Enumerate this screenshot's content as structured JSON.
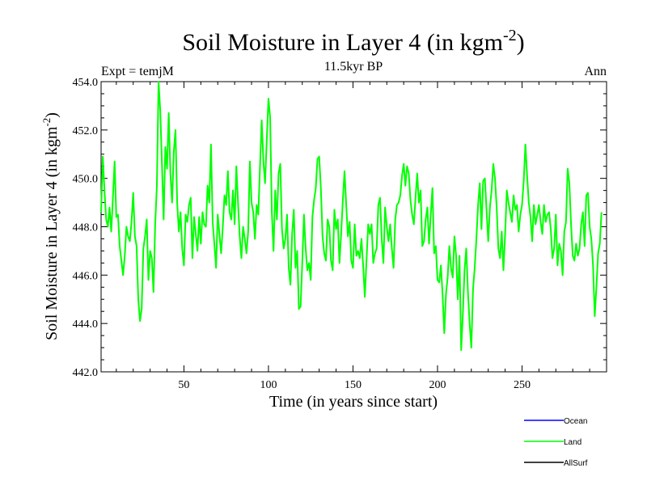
{
  "chart_data": {
    "type": "line",
    "title": "Soil Moisture in Layer 4 (in kgm",
    "title_superscript": "-2",
    "title_suffix": ")",
    "subtitle": "11.5kyr BP",
    "left_label": "Expt = temjM",
    "right_label": "Ann",
    "xlabel": "Time (in years since start)",
    "ylabel": "Soil Moisture in Layer 4 (in kgm",
    "ylabel_superscript": "-2",
    "ylabel_suffix": ")",
    "xlim": [
      1,
      300
    ],
    "ylim": [
      442.0,
      454.0
    ],
    "x_ticks": [
      50,
      100,
      150,
      200,
      250
    ],
    "x_tick_labels": [
      "50",
      "100",
      "150",
      "200",
      "250"
    ],
    "y_ticks": [
      442,
      444,
      446,
      448,
      450,
      452,
      454
    ],
    "y_tick_labels": [
      "442.0",
      "444.0",
      "446.0",
      "448.0",
      "450.0",
      "452.0",
      "454.0"
    ],
    "legend": [
      {
        "name": "Ocean",
        "color": "#0000ff"
      },
      {
        "name": "Land",
        "color": "#00ff00"
      },
      {
        "name": "AllSurf",
        "color": "#000000"
      }
    ],
    "series": [
      {
        "name": "Land",
        "color": "#00ff00",
        "x_start": 1,
        "x_step": 1,
        "values": [
          448.6,
          450.9,
          449.5,
          448.3,
          448.0,
          448.8,
          447.8,
          449.2,
          450.7,
          448.4,
          448.5,
          447.2,
          446.6,
          446.0,
          446.8,
          448.0,
          447.6,
          447.4,
          448.2,
          449.4,
          447.6,
          447.2,
          445.0,
          444.1,
          444.6,
          447.1,
          447.6,
          448.3,
          445.8,
          447.0,
          446.7,
          445.3,
          448.1,
          449.7,
          454.0,
          452.8,
          450.6,
          448.3,
          451.3,
          450.4,
          452.7,
          450.2,
          449.0,
          451.1,
          452.0,
          449.0,
          447.8,
          448.6,
          447.1,
          446.4,
          448.5,
          448.2,
          448.9,
          449.2,
          446.7,
          448.4,
          447.7,
          447.0,
          448.4,
          447.3,
          448.6,
          448.1,
          448.0,
          449.7,
          449.0,
          451.4,
          448.2,
          447.3,
          446.3,
          448.5,
          447.7,
          446.9,
          448.0,
          449.3,
          448.9,
          450.3,
          448.6,
          448.3,
          449.5,
          448.1,
          450.5,
          449.0,
          447.6,
          446.7,
          448.0,
          447.5,
          446.9,
          447.8,
          450.7,
          449.0,
          448.6,
          447.5,
          448.9,
          448.5,
          450.5,
          452.4,
          450.7,
          449.8,
          451.6,
          453.3,
          452.5,
          448.6,
          447.0,
          449.5,
          448.3,
          450.2,
          450.6,
          447.9,
          447.1,
          447.5,
          448.5,
          446.3,
          445.6,
          447.7,
          448.7,
          446.3,
          447.0,
          444.6,
          444.7,
          446.5,
          448.5,
          447.1,
          446.2,
          446.5,
          445.8,
          448.4,
          449.1,
          449.6,
          450.8,
          450.9,
          449.6,
          447.6,
          446.9,
          446.6,
          448.3,
          448.0,
          446.6,
          446.2,
          448.7,
          447.9,
          448.3,
          446.5,
          447.7,
          449.1,
          450.3,
          448.9,
          447.6,
          448.2,
          446.6,
          446.3,
          448.1,
          446.8,
          447.0,
          446.7,
          447.5,
          446.4,
          445.1,
          446.6,
          448.1,
          447.7,
          448.1,
          446.5,
          446.9,
          447.1,
          448.9,
          449.2,
          447.5,
          446.5,
          448.8,
          448.0,
          447.4,
          448.1,
          447.1,
          446.3,
          448.3,
          448.9,
          449.0,
          449.3,
          450.1,
          450.6,
          449.7,
          450.5,
          450.2,
          449.1,
          448.5,
          448.1,
          449.2,
          450.2,
          449.0,
          449.5,
          447.2,
          447.4,
          448.3,
          448.8,
          447.3,
          448.5,
          449.6,
          446.9,
          447.2,
          445.8,
          445.7,
          446.4,
          445.2,
          443.6,
          445.2,
          445.9,
          447.2,
          446.3,
          445.9,
          447.6,
          446.8,
          445.0,
          446.8,
          442.9,
          444.4,
          446.2,
          447.1,
          445.3,
          444.0,
          443.0,
          445.4,
          446.3,
          447.5,
          448.9,
          449.8,
          447.9,
          449.9,
          450.0,
          448.7,
          447.4,
          448.8,
          449.5,
          450.6,
          450.0,
          448.8,
          447.1,
          446.7,
          447.8,
          446.2,
          447.7,
          449.5,
          449.0,
          448.6,
          448.2,
          449.3,
          448.7,
          448.9,
          447.8,
          448.5,
          448.9,
          449.9,
          451.4,
          450.1,
          449.0,
          448.4,
          447.4,
          448.9,
          448.1,
          448.5,
          448.9,
          448.2,
          447.7,
          448.9,
          448.2,
          448.5,
          448.6,
          447.9,
          446.7,
          447.1,
          448.5,
          446.4,
          447.3,
          447.0,
          446.0,
          447.8,
          448.2,
          450.4,
          449.8,
          448.1,
          446.8,
          446.6,
          447.3,
          446.8,
          447.1,
          448.1,
          448.6,
          447.2,
          449.3,
          449.4,
          448.0,
          447.5,
          446.4,
          444.3,
          445.5,
          446.9,
          447.3,
          448.6
        ]
      }
    ]
  }
}
